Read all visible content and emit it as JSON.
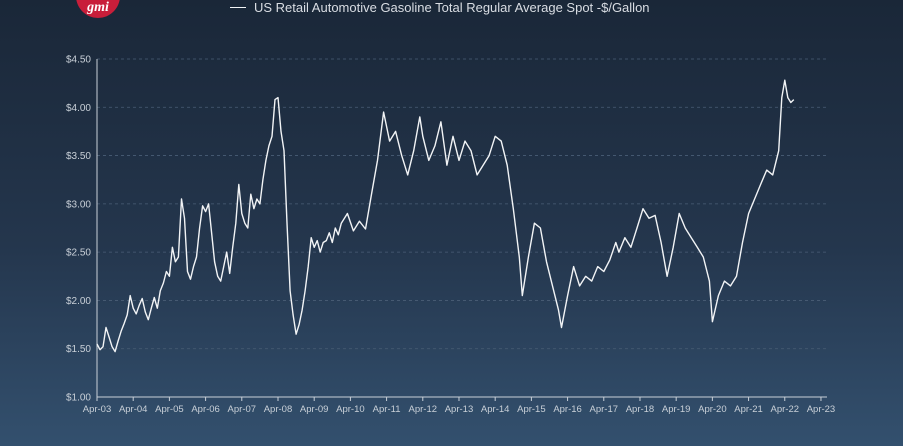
{
  "logo": {
    "text": "gmi"
  },
  "legend": {
    "label": "US Retail Automotive Gasoline Total Regular Average Spot -$/Gallon"
  },
  "chart_data": {
    "type": "line",
    "title": "",
    "xlabel": "",
    "ylabel": "",
    "ylim": [
      1.0,
      4.5
    ],
    "xlim": [
      "2003-04",
      "2023-06"
    ],
    "grid": true,
    "legend_position": "top",
    "line_color": "#f2f4f6",
    "y_ticks": [
      "$1.00",
      "$1.50",
      "$2.00",
      "$2.50",
      "$3.00",
      "$3.50",
      "$4.00",
      "$4.50"
    ],
    "x_ticks": [
      "Apr-03",
      "Apr-04",
      "Apr-05",
      "Apr-06",
      "Apr-07",
      "Apr-08",
      "Apr-09",
      "Apr-10",
      "Apr-11",
      "Apr-12",
      "Apr-13",
      "Apr-14",
      "Apr-15",
      "Apr-16",
      "Apr-17",
      "Apr-18",
      "Apr-19",
      "Apr-20",
      "Apr-21",
      "Apr-22",
      "Apr-23"
    ],
    "series": [
      {
        "name": "US Retail Automotive Gasoline Total Regular Average Spot -$/Gallon",
        "x": [
          "2003-04",
          "2003-05",
          "2003-06",
          "2003-07",
          "2003-08",
          "2003-09",
          "2003-10",
          "2003-11",
          "2003-12",
          "2004-01",
          "2004-02",
          "2004-03",
          "2004-04",
          "2004-05",
          "2004-06",
          "2004-07",
          "2004-08",
          "2004-09",
          "2004-10",
          "2004-11",
          "2004-12",
          "2005-01",
          "2005-02",
          "2005-03",
          "2005-04",
          "2005-05",
          "2005-06",
          "2005-07",
          "2005-08",
          "2005-09",
          "2005-10",
          "2005-11",
          "2005-12",
          "2006-01",
          "2006-02",
          "2006-03",
          "2006-04",
          "2006-05",
          "2006-06",
          "2006-07",
          "2006-08",
          "2006-09",
          "2006-10",
          "2006-11",
          "2006-12",
          "2007-01",
          "2007-02",
          "2007-03",
          "2007-04",
          "2007-05",
          "2007-06",
          "2007-07",
          "2007-08",
          "2007-09",
          "2007-10",
          "2007-11",
          "2007-12",
          "2008-01",
          "2008-02",
          "2008-03",
          "2008-04",
          "2008-05",
          "2008-06",
          "2008-07",
          "2008-08",
          "2008-09",
          "2008-10",
          "2008-11",
          "2008-12",
          "2009-01",
          "2009-02",
          "2009-03",
          "2009-04",
          "2009-05",
          "2009-06",
          "2009-07",
          "2009-08",
          "2009-09",
          "2009-10",
          "2009-11",
          "2009-12",
          "2010-01",
          "2010-03",
          "2010-05",
          "2010-07",
          "2010-09",
          "2010-11",
          "2011-01",
          "2011-03",
          "2011-05",
          "2011-07",
          "2011-09",
          "2011-11",
          "2012-01",
          "2012-03",
          "2012-04",
          "2012-06",
          "2012-08",
          "2012-10",
          "2012-12",
          "2013-02",
          "2013-04",
          "2013-06",
          "2013-08",
          "2013-10",
          "2013-12",
          "2014-02",
          "2014-04",
          "2014-06",
          "2014-08",
          "2014-10",
          "2014-12",
          "2015-01",
          "2015-03",
          "2015-05",
          "2015-07",
          "2015-09",
          "2015-11",
          "2016-01",
          "2016-02",
          "2016-04",
          "2016-06",
          "2016-08",
          "2016-10",
          "2016-12",
          "2017-02",
          "2017-04",
          "2017-06",
          "2017-08",
          "2017-09",
          "2017-11",
          "2018-01",
          "2018-03",
          "2018-05",
          "2018-07",
          "2018-09",
          "2018-11",
          "2019-01",
          "2019-03",
          "2019-05",
          "2019-07",
          "2019-09",
          "2019-11",
          "2020-01",
          "2020-03",
          "2020-04",
          "2020-06",
          "2020-08",
          "2020-10",
          "2020-12",
          "2021-02",
          "2021-04",
          "2021-06",
          "2021-08",
          "2021-10",
          "2021-12",
          "2022-02",
          "2022-03",
          "2022-04",
          "2022-05",
          "2022-06",
          "2022-07"
        ],
        "values": [
          1.55,
          1.49,
          1.52,
          1.72,
          1.62,
          1.52,
          1.47,
          1.58,
          1.68,
          1.76,
          1.85,
          2.05,
          1.92,
          1.86,
          1.95,
          2.02,
          1.88,
          1.8,
          1.92,
          2.03,
          1.92,
          2.1,
          2.18,
          2.3,
          2.25,
          2.55,
          2.4,
          2.45,
          3.05,
          2.85,
          2.3,
          2.22,
          2.35,
          2.45,
          2.75,
          2.98,
          2.92,
          3.0,
          2.7,
          2.4,
          2.25,
          2.2,
          2.35,
          2.5,
          2.28,
          2.55,
          2.8,
          3.2,
          2.9,
          2.8,
          2.75,
          3.1,
          2.95,
          3.05,
          3.0,
          3.25,
          3.45,
          3.6,
          3.7,
          4.08,
          4.1,
          3.75,
          3.55,
          2.8,
          2.1,
          1.85,
          1.65,
          1.75,
          1.9,
          2.1,
          2.35,
          2.65,
          2.55,
          2.62,
          2.5,
          2.6,
          2.62,
          2.7,
          2.6,
          2.75,
          2.68,
          2.8,
          2.9,
          2.72,
          2.82,
          2.74,
          3.1,
          3.45,
          3.95,
          3.65,
          3.75,
          3.5,
          3.3,
          3.55,
          3.9,
          3.7,
          3.45,
          3.6,
          3.85,
          3.4,
          3.7,
          3.45,
          3.65,
          3.55,
          3.3,
          3.4,
          3.5,
          3.7,
          3.65,
          3.4,
          2.95,
          2.45,
          2.05,
          2.45,
          2.8,
          2.75,
          2.4,
          2.15,
          1.9,
          1.72,
          2.05,
          2.35,
          2.15,
          2.25,
          2.2,
          2.35,
          2.3,
          2.42,
          2.6,
          2.5,
          2.65,
          2.55,
          2.75,
          2.95,
          2.85,
          2.88,
          2.6,
          2.25,
          2.55,
          2.9,
          2.75,
          2.65,
          2.55,
          2.45,
          2.2,
          1.78,
          2.05,
          2.2,
          2.15,
          2.25,
          2.6,
          2.9,
          3.05,
          3.2,
          3.35,
          3.3,
          3.55,
          4.1,
          4.28,
          4.1,
          4.05,
          4.08
        ]
      }
    ]
  }
}
